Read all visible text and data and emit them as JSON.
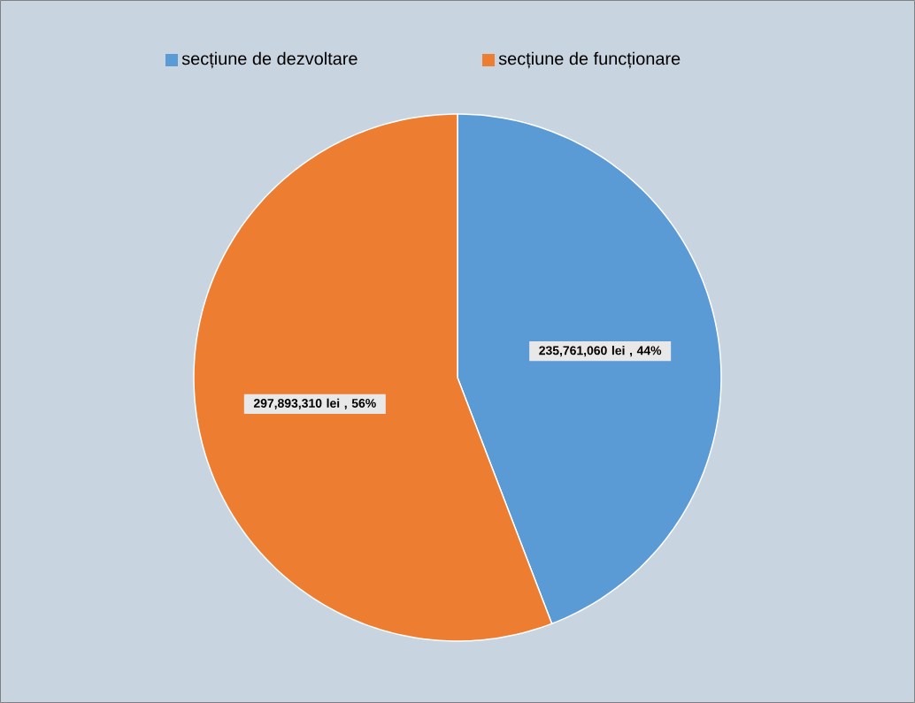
{
  "chart_data": {
    "type": "pie",
    "categories": [
      "secțiune de dezvoltare",
      "secțiune de funcționare"
    ],
    "values": [
      235761060,
      297893310
    ],
    "colors": [
      "#5b9bd5",
      "#ed7d31"
    ],
    "value_labels": [
      "235,761,060 lei , 44%",
      "297,893,310 lei , 56%"
    ],
    "legend": "top"
  }
}
